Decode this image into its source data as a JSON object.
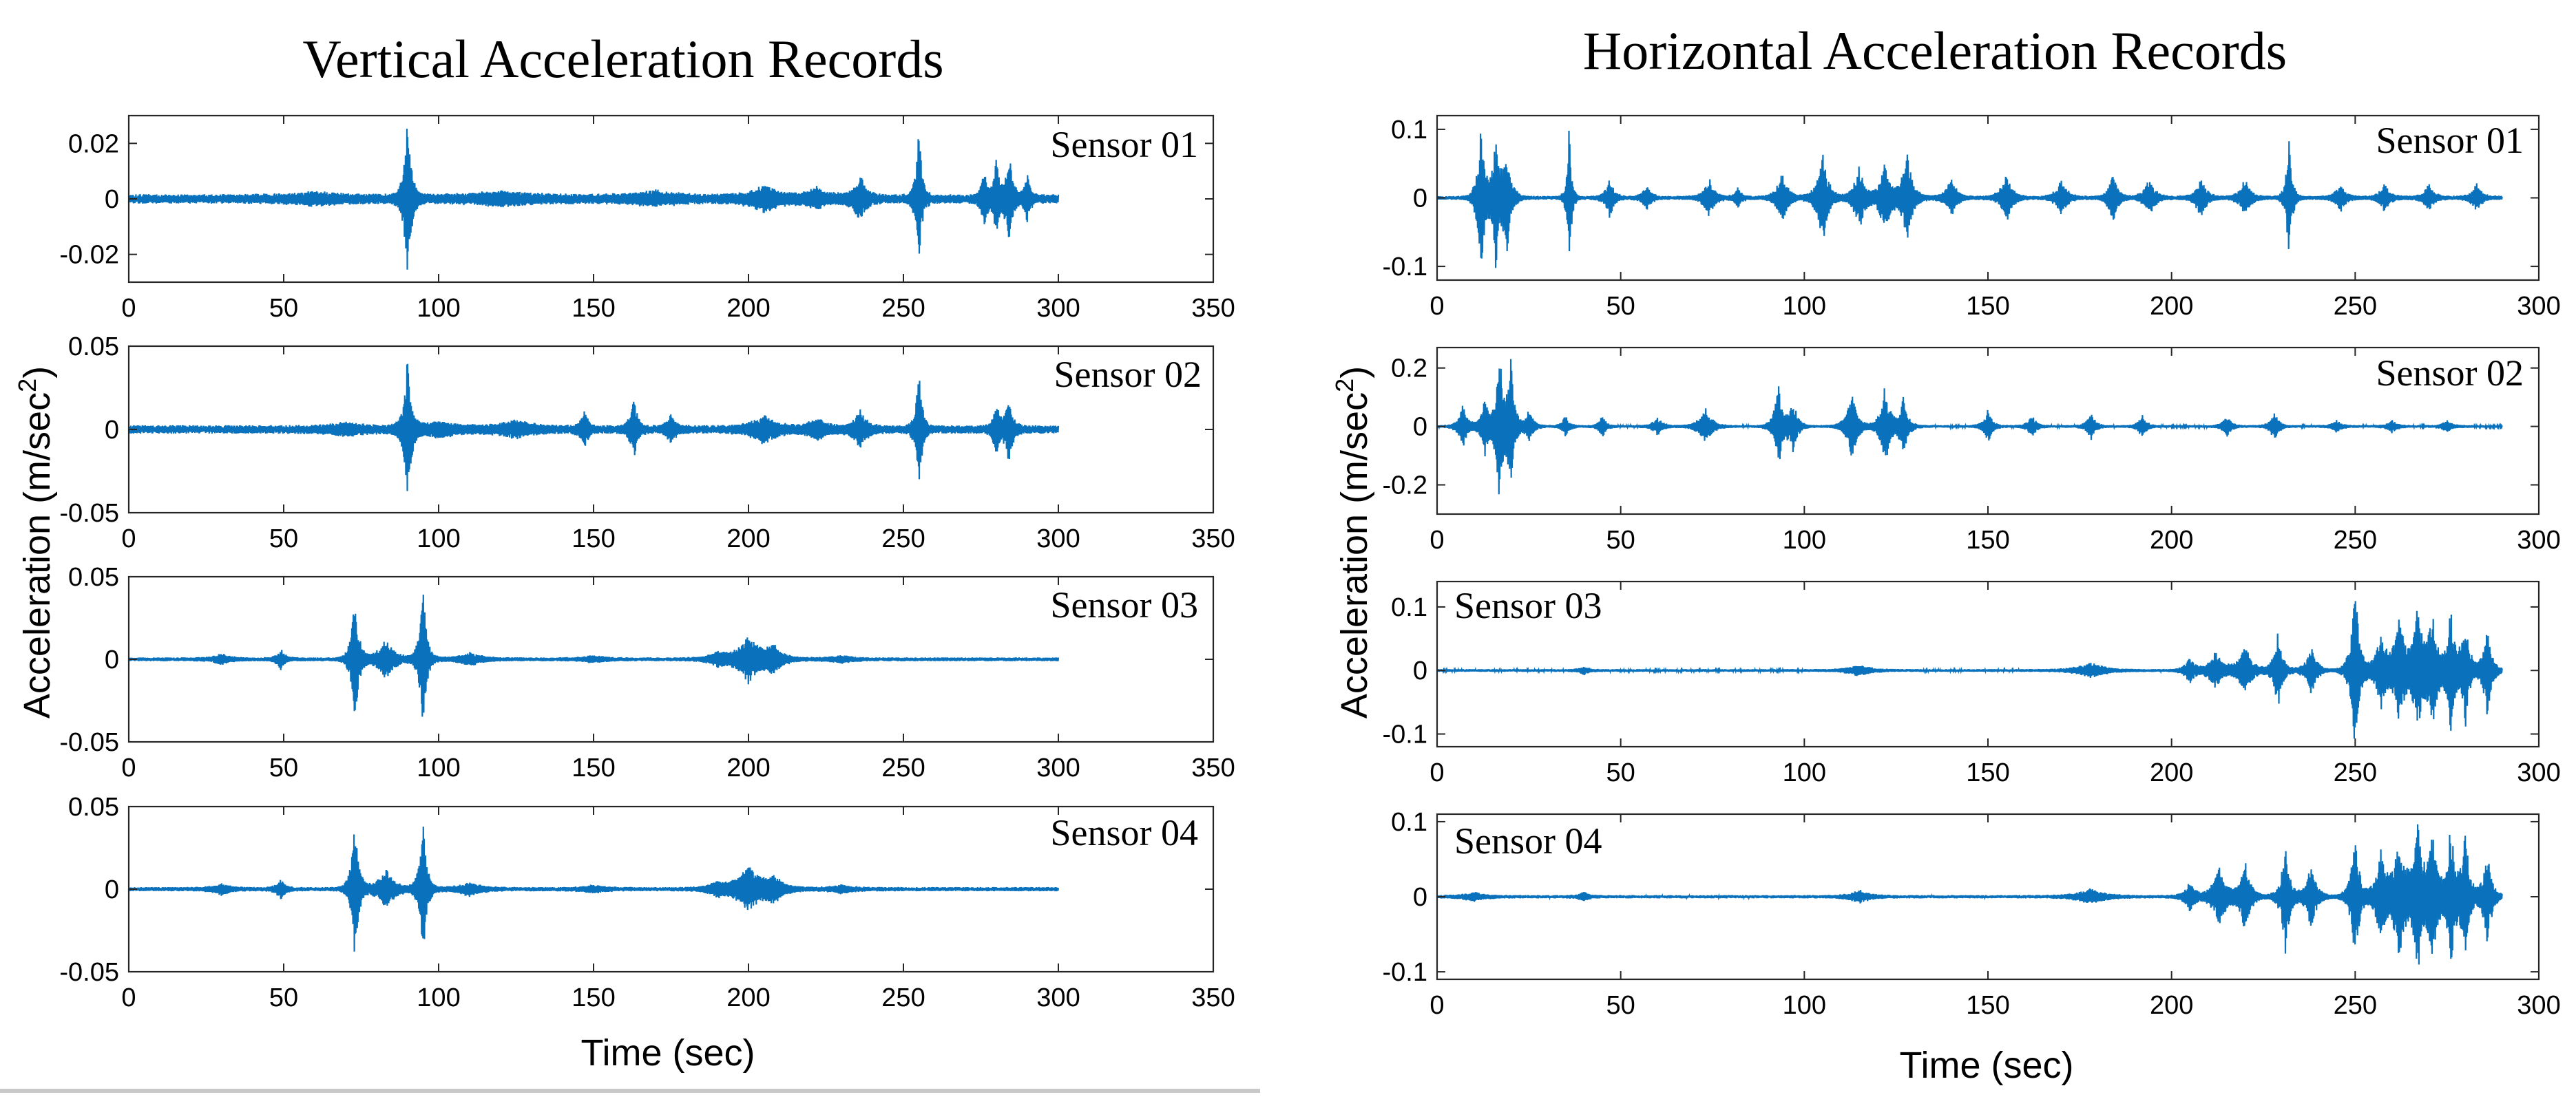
{
  "panels": [
    {
      "title": "Vertical Acceleration Records",
      "xlabel": "Time (sec)",
      "ylabel": "Acceleration (m/sec",
      "ylabel_sup": "2",
      "ylabel_close": ")",
      "xlim": [
        0,
        350
      ],
      "xticks": [
        "0",
        "50",
        "100",
        "150",
        "200",
        "250",
        "300",
        "350"
      ]
    },
    {
      "title": "Horizontal Acceleration Records",
      "xlabel": "Time (sec)",
      "ylabel": "Acceleration (m/sec",
      "ylabel_sup": "2",
      "ylabel_close": ")",
      "xlim": [
        0,
        300
      ],
      "xticks": [
        "0",
        "50",
        "100",
        "150",
        "200",
        "250",
        "300"
      ]
    }
  ],
  "chart_data": [
    {
      "type": "line",
      "panel": "vertical",
      "series": [
        {
          "name": "Sensor 01"
        }
      ],
      "x_range": [
        0,
        300
      ],
      "ylim": [
        -0.03,
        0.03
      ],
      "yticks": [
        0.02,
        0,
        -0.02
      ],
      "ytick_labels": [
        "0.02",
        "0",
        "-0.02"
      ],
      "noise": 0.0012,
      "bursts": [
        [
          90,
          0.03,
          1.2
        ],
        [
          255,
          0.026,
          1.0
        ],
        [
          276,
          0.011,
          1.0
        ],
        [
          280,
          0.014,
          1.0
        ],
        [
          284,
          0.018,
          1.2
        ],
        [
          290,
          0.008,
          1.0
        ],
        [
          205,
          0.004,
          5
        ],
        [
          222,
          0.003,
          4
        ],
        [
          236,
          0.008,
          2
        ],
        [
          120,
          0.002,
          10
        ],
        [
          60,
          0.0015,
          10
        ],
        [
          170,
          0.002,
          8
        ]
      ]
    },
    {
      "type": "line",
      "panel": "vertical",
      "series": [
        {
          "name": "Sensor 02"
        }
      ],
      "x_range": [
        0,
        300
      ],
      "ylim": [
        -0.05,
        0.05
      ],
      "yticks": [
        0.05,
        0,
        -0.05
      ],
      "ytick_labels": [
        "0.05",
        "0",
        "-0.05"
      ],
      "noise": 0.0018,
      "bursts": [
        [
          90,
          0.045,
          1.2
        ],
        [
          255,
          0.04,
          1.0
        ],
        [
          147,
          0.012,
          1.2
        ],
        [
          163,
          0.017,
          1.3
        ],
        [
          175,
          0.008,
          1.5
        ],
        [
          205,
          0.008,
          4
        ],
        [
          222,
          0.006,
          3
        ],
        [
          236,
          0.012,
          2
        ],
        [
          280,
          0.015,
          1.2
        ],
        [
          284,
          0.02,
          1.2
        ],
        [
          100,
          0.004,
          6
        ],
        [
          70,
          0.003,
          6
        ],
        [
          125,
          0.004,
          6
        ]
      ]
    },
    {
      "type": "line",
      "panel": "vertical",
      "series": [
        {
          "name": "Sensor 03"
        }
      ],
      "x_range": [
        0,
        300
      ],
      "ylim": [
        -0.05,
        0.05
      ],
      "yticks": [
        0.05,
        0,
        -0.05
      ],
      "ytick_labels": [
        "0.05",
        "0",
        "-0.05"
      ],
      "noise": 0.0008,
      "bursts": [
        [
          73,
          0.044,
          1.2
        ],
        [
          95,
          0.044,
          1.2
        ],
        [
          83,
          0.012,
          3
        ],
        [
          49,
          0.006,
          1.5
        ],
        [
          30,
          0.003,
          3
        ],
        [
          110,
          0.004,
          4
        ],
        [
          200,
          0.014,
          4
        ],
        [
          208,
          0.008,
          3
        ],
        [
          150,
          0.002,
          4
        ],
        [
          190,
          0.004,
          3
        ],
        [
          230,
          0.002,
          4
        ]
      ]
    },
    {
      "type": "line",
      "panel": "vertical",
      "series": [
        {
          "name": "Sensor 04"
        }
      ],
      "x_range": [
        0,
        300
      ],
      "ylim": [
        -0.05,
        0.05
      ],
      "yticks": [
        0.05,
        0,
        -0.05
      ],
      "ytick_labels": [
        "0.05",
        "0",
        "-0.05"
      ],
      "noise": 0.0009,
      "bursts": [
        [
          73,
          0.044,
          1.2
        ],
        [
          95,
          0.042,
          1.2
        ],
        [
          83,
          0.012,
          3
        ],
        [
          49,
          0.006,
          1.5
        ],
        [
          30,
          0.003,
          3
        ],
        [
          110,
          0.004,
          4
        ],
        [
          200,
          0.014,
          4
        ],
        [
          208,
          0.008,
          3
        ],
        [
          150,
          0.002,
          4
        ],
        [
          190,
          0.004,
          3
        ],
        [
          230,
          0.002,
          4
        ]
      ]
    },
    {
      "type": "line",
      "panel": "horizontal",
      "series": [
        {
          "name": "Sensor 01"
        }
      ],
      "x_range": [
        0,
        290
      ],
      "ylim": [
        -0.12,
        0.12
      ],
      "yticks": [
        0.1,
        0,
        -0.1
      ],
      "ytick_labels": [
        "0.1",
        "0",
        "-0.1"
      ],
      "noise": 0.002,
      "bursts": [
        [
          12,
          0.12,
          1.0
        ],
        [
          16,
          0.1,
          1.0
        ],
        [
          19,
          0.08,
          1.2
        ],
        [
          36,
          0.12,
          0.6
        ],
        [
          47,
          0.03,
          1.2
        ],
        [
          57,
          0.02,
          1.2
        ],
        [
          74,
          0.03,
          1.5
        ],
        [
          82,
          0.015,
          1
        ],
        [
          94,
          0.04,
          1.5
        ],
        [
          105,
          0.07,
          1.5
        ],
        [
          115,
          0.05,
          1.5
        ],
        [
          122,
          0.06,
          1.5
        ],
        [
          128,
          0.07,
          1.5
        ],
        [
          140,
          0.03,
          1.5
        ],
        [
          155,
          0.04,
          1.5
        ],
        [
          170,
          0.03,
          1.5
        ],
        [
          184,
          0.04,
          1.2
        ],
        [
          194,
          0.03,
          1.5
        ],
        [
          208,
          0.03,
          1.5
        ],
        [
          220,
          0.03,
          1.5
        ],
        [
          232,
          0.1,
          0.8
        ],
        [
          246,
          0.02,
          1.5
        ],
        [
          258,
          0.02,
          1.5
        ],
        [
          270,
          0.02,
          1.5
        ],
        [
          283,
          0.02,
          1.5
        ]
      ]
    },
    {
      "type": "line",
      "panel": "horizontal",
      "series": [
        {
          "name": "Sensor 02"
        }
      ],
      "x_range": [
        0,
        290
      ],
      "ylim": [
        -0.3,
        0.27
      ],
      "yticks": [
        0.2,
        0,
        -0.2
      ],
      "ytick_labels": [
        "0.2",
        "0",
        "-0.2"
      ],
      "noise": 0.003,
      "bursts": [
        [
          7,
          0.08,
          1.2
        ],
        [
          13,
          0.1,
          1.2
        ],
        [
          17,
          0.28,
          1.0
        ],
        [
          20,
          0.25,
          1.0
        ],
        [
          25,
          0.06,
          1.2
        ],
        [
          35,
          0.04,
          1
        ],
        [
          45,
          0.04,
          1
        ],
        [
          60,
          0.03,
          1.5
        ],
        [
          73,
          0.07,
          1.8
        ],
        [
          93,
          0.15,
          1.2
        ],
        [
          97,
          0.09,
          1.2
        ],
        [
          113,
          0.12,
          1.5
        ],
        [
          122,
          0.15,
          1.3
        ],
        [
          127,
          0.1,
          1.3
        ],
        [
          150,
          0.06,
          1.2
        ],
        [
          162,
          0.04,
          1.2
        ],
        [
          178,
          0.05,
          1.2
        ],
        [
          192,
          0.04,
          1.2
        ],
        [
          215,
          0.04,
          1.2
        ],
        [
          228,
          0.05,
          1.2
        ],
        [
          245,
          0.02,
          1.5
        ],
        [
          260,
          0.02,
          1.5
        ],
        [
          275,
          0.02,
          1.5
        ]
      ]
    },
    {
      "type": "line",
      "panel": "horizontal",
      "series": [
        {
          "name": "Sensor 03"
        }
      ],
      "x_range": [
        0,
        290
      ],
      "ylim": [
        -0.12,
        0.14
      ],
      "yticks": [
        0.1,
        0,
        -0.1
      ],
      "ytick_labels": [
        "0.1",
        "0",
        "-0.1"
      ],
      "noise": 0.0015,
      "bursts": [
        [
          40,
          0.006,
          1.5
        ],
        [
          115,
          0.01,
          3
        ],
        [
          178,
          0.012,
          4
        ],
        [
          205,
          0.02,
          1.5
        ],
        [
          212,
          0.03,
          2
        ],
        [
          220,
          0.04,
          2
        ],
        [
          229,
          0.065,
          1.2
        ],
        [
          238,
          0.04,
          1.5
        ],
        [
          250,
          0.14,
          1.2
        ],
        [
          257,
          0.06,
          1.5
        ],
        [
          262,
          0.08,
          2
        ],
        [
          267,
          0.1,
          1.5
        ],
        [
          271,
          0.09,
          1.5
        ],
        [
          276,
          0.1,
          1.2
        ],
        [
          280,
          0.09,
          1.2
        ],
        [
          286,
          0.08,
          1.2
        ]
      ]
    },
    {
      "type": "line",
      "panel": "horizontal",
      "series": [
        {
          "name": "Sensor 04"
        }
      ],
      "x_range": [
        0,
        290
      ],
      "ylim": [
        -0.11,
        0.11
      ],
      "yticks": [
        0.1,
        0,
        -0.1
      ],
      "ytick_labels": [
        "0.1",
        "0",
        "-0.1"
      ],
      "noise": 0.0015,
      "bursts": [
        [
          10,
          0.006,
          3
        ],
        [
          40,
          0.006,
          1.5
        ],
        [
          115,
          0.008,
          3
        ],
        [
          178,
          0.01,
          4
        ],
        [
          205,
          0.02,
          1.5
        ],
        [
          213,
          0.04,
          2
        ],
        [
          220,
          0.05,
          1.5
        ],
        [
          231,
          0.075,
          1.2
        ],
        [
          238,
          0.045,
          1.5
        ],
        [
          250,
          0.09,
          1.2
        ],
        [
          257,
          0.06,
          1.5
        ],
        [
          262,
          0.08,
          2
        ],
        [
          267,
          0.11,
          1.2
        ],
        [
          271,
          0.09,
          1.5
        ],
        [
          276,
          0.1,
          1.2
        ],
        [
          280,
          0.09,
          1.2
        ],
        [
          286,
          0.07,
          1.2
        ]
      ]
    }
  ],
  "colors": {
    "trace": "#0a72bd",
    "axis": "#262626",
    "text": "#000000"
  },
  "footer": {
    "strip_color": "#c9c9c9"
  }
}
